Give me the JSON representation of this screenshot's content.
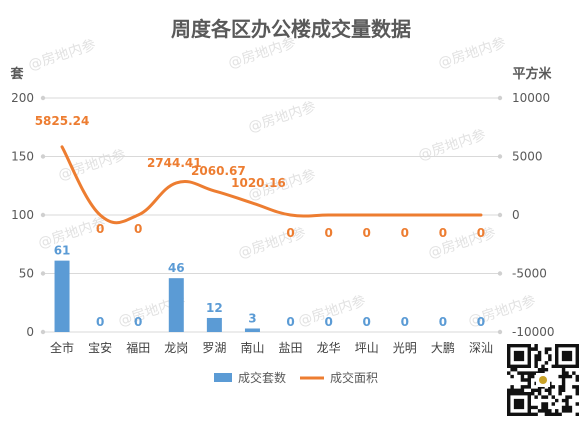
{
  "chart_data": {
    "type": "bar",
    "title": "周度各区办公楼成交量数据",
    "y_left_unit": "套",
    "y_right_unit": "平方米",
    "categories": [
      "全市",
      "宝安",
      "福田",
      "龙岗",
      "罗湖",
      "南山",
      "盐田",
      "龙华",
      "坪山",
      "光明",
      "大鹏",
      "深汕"
    ],
    "series": [
      {
        "name": "成交套数",
        "kind": "bar",
        "axis": "left",
        "color": "#5b9bd5",
        "values": [
          61,
          0,
          0,
          46,
          12,
          3,
          0,
          0,
          0,
          0,
          0,
          0
        ]
      },
      {
        "name": "成交面积",
        "kind": "line",
        "axis": "right",
        "color": "#ed7d31",
        "smooth": true,
        "values": [
          5825.24,
          0,
          0,
          2744.41,
          2060.67,
          1020.16,
          0,
          0,
          0,
          0,
          0,
          0
        ]
      }
    ],
    "y_left": {
      "min": 0,
      "max": 200,
      "ticks": [
        0,
        50,
        100,
        150,
        200
      ]
    },
    "y_right": {
      "min": -10000,
      "max": 10000,
      "ticks": [
        -10000,
        -5000,
        0,
        5000,
        10000
      ]
    },
    "grid": true,
    "legend_position": "bottom",
    "watermark": "@房地内参"
  }
}
